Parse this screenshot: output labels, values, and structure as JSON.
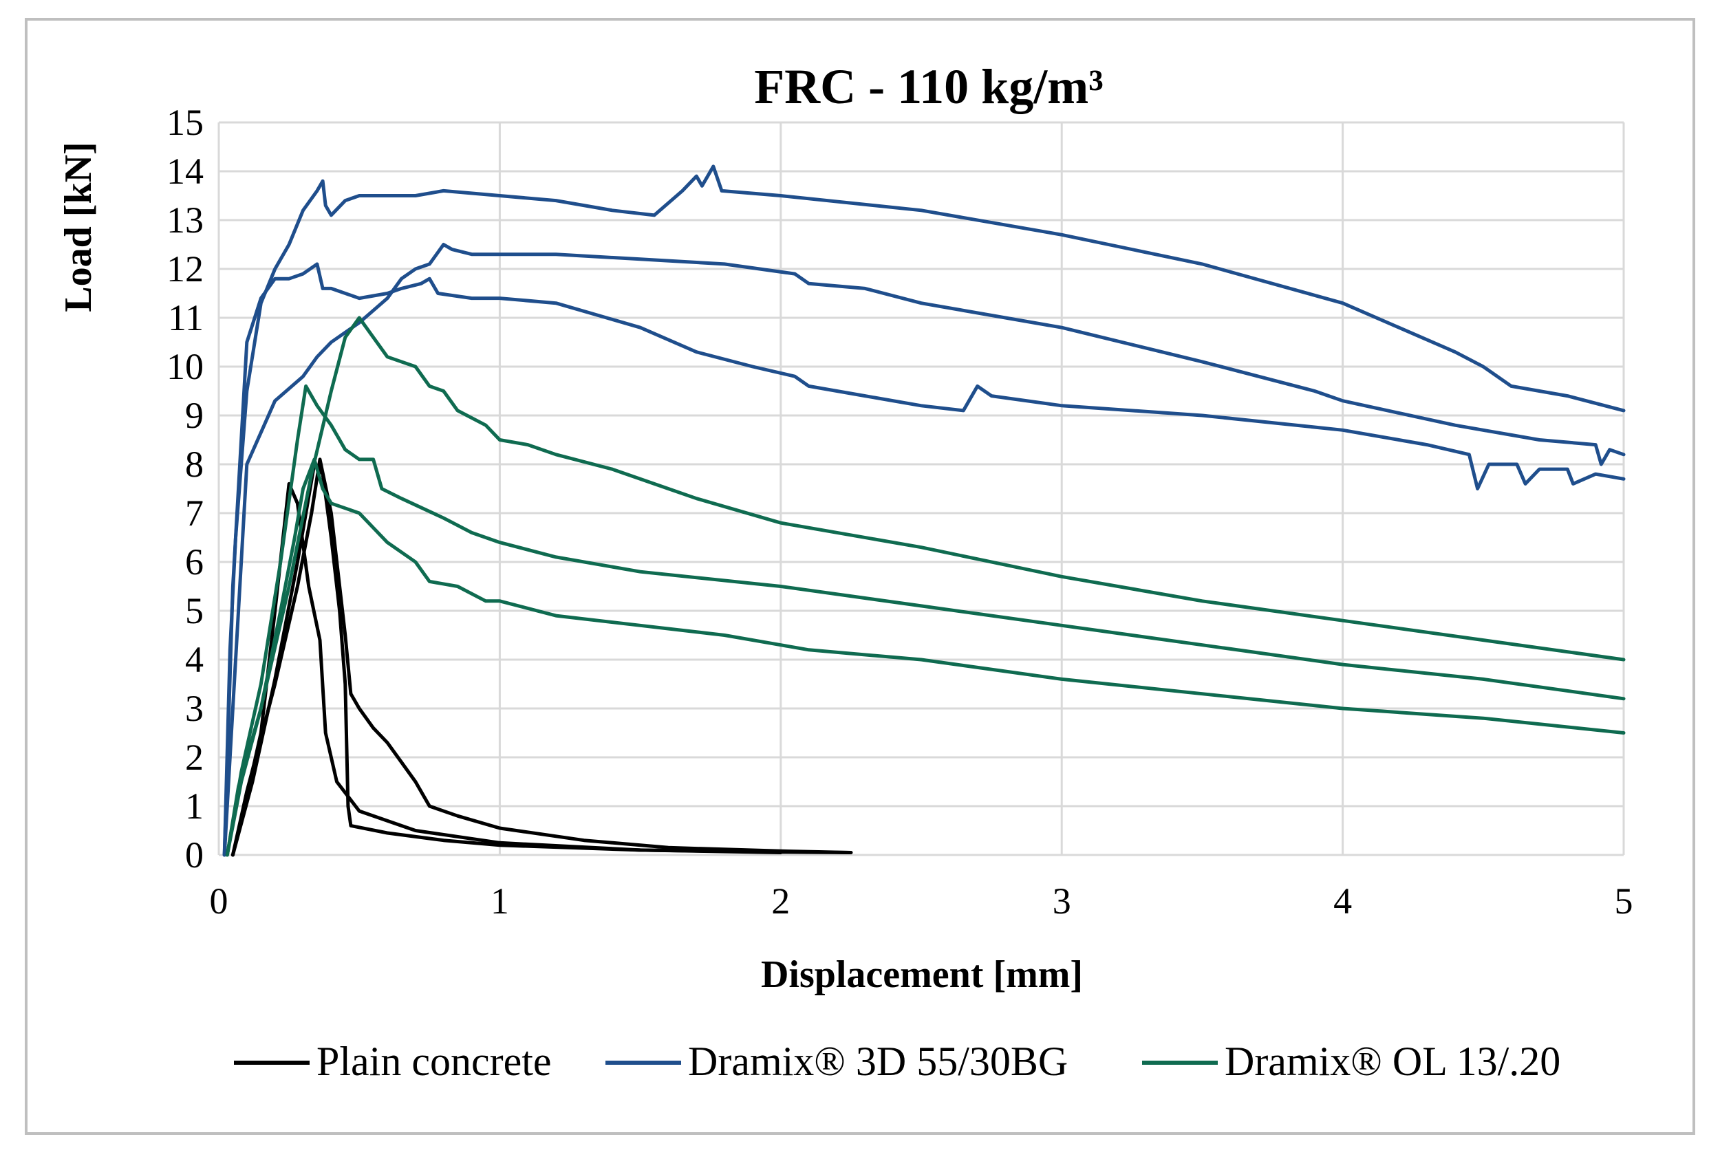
{
  "chart_data": {
    "type": "line",
    "title": "FRC - 110 kg/m³",
    "xlabel": "Displacement [mm]",
    "ylabel": "Load [kN]",
    "xlim": [
      0,
      5
    ],
    "ylim": [
      0,
      15
    ],
    "x_ticks": [
      "0",
      "1",
      "2",
      "3",
      "4",
      "5"
    ],
    "y_ticks": [
      "0",
      "1",
      "2",
      "3",
      "4",
      "5",
      "6",
      "7",
      "8",
      "9",
      "10",
      "11",
      "12",
      "13",
      "14",
      "15"
    ],
    "grid": true,
    "legend_position": "bottom",
    "legend": [
      {
        "label": "Plain concrete",
        "color": "#000000"
      },
      {
        "label": "Dramix® 3D 55/30BG",
        "color": "#1f4e8c"
      },
      {
        "label": "Dramix® OL 13/.20",
        "color": "#0f6b50"
      }
    ],
    "series": [
      {
        "group": "Plain concrete",
        "color": "#000000",
        "points": [
          [
            0.05,
            0
          ],
          [
            0.1,
            1.2
          ],
          [
            0.15,
            2.5
          ],
          [
            0.2,
            5.0
          ],
          [
            0.25,
            7.6
          ],
          [
            0.28,
            7.2
          ],
          [
            0.32,
            5.5
          ],
          [
            0.36,
            4.4
          ],
          [
            0.38,
            2.5
          ],
          [
            0.42,
            1.5
          ],
          [
            0.5,
            0.9
          ],
          [
            0.7,
            0.5
          ],
          [
            1.0,
            0.25
          ],
          [
            1.5,
            0.1
          ],
          [
            2.0,
            0.06
          ],
          [
            2.25,
            0.05
          ]
        ]
      },
      {
        "group": "Plain concrete",
        "color": "#000000",
        "points": [
          [
            0.05,
            0
          ],
          [
            0.1,
            1.3
          ],
          [
            0.2,
            3.5
          ],
          [
            0.28,
            5.5
          ],
          [
            0.33,
            7.0
          ],
          [
            0.36,
            8.1
          ],
          [
            0.4,
            7.0
          ],
          [
            0.45,
            4.5
          ],
          [
            0.47,
            3.3
          ],
          [
            0.5,
            3.0
          ],
          [
            0.55,
            2.6
          ],
          [
            0.6,
            2.3
          ],
          [
            0.65,
            1.9
          ],
          [
            0.7,
            1.5
          ],
          [
            0.75,
            1.0
          ],
          [
            0.85,
            0.8
          ],
          [
            1.0,
            0.55
          ],
          [
            1.3,
            0.3
          ],
          [
            1.6,
            0.15
          ],
          [
            2.0,
            0.08
          ],
          [
            2.25,
            0.05
          ]
        ]
      },
      {
        "group": "Plain concrete",
        "color": "#000000",
        "points": [
          [
            0.05,
            0
          ],
          [
            0.12,
            1.5
          ],
          [
            0.2,
            3.6
          ],
          [
            0.28,
            6.0
          ],
          [
            0.34,
            8.0
          ],
          [
            0.37,
            7.8
          ],
          [
            0.4,
            6.5
          ],
          [
            0.43,
            5.0
          ],
          [
            0.45,
            3.5
          ],
          [
            0.46,
            1.0
          ],
          [
            0.47,
            0.6
          ],
          [
            0.6,
            0.45
          ],
          [
            0.8,
            0.3
          ],
          [
            1.0,
            0.2
          ],
          [
            1.5,
            0.1
          ],
          [
            2.0,
            0.05
          ]
        ]
      },
      {
        "group": "Dramix® 3D 55/30BG",
        "color": "#1f4e8c",
        "points": [
          [
            0.02,
            0
          ],
          [
            0.04,
            4.2
          ],
          [
            0.06,
            6.5
          ],
          [
            0.1,
            9.5
          ],
          [
            0.15,
            11.3
          ],
          [
            0.2,
            12.0
          ],
          [
            0.25,
            12.5
          ],
          [
            0.3,
            13.2
          ],
          [
            0.35,
            13.6
          ],
          [
            0.37,
            13.8
          ],
          [
            0.38,
            13.3
          ],
          [
            0.4,
            13.1
          ],
          [
            0.45,
            13.4
          ],
          [
            0.5,
            13.5
          ],
          [
            0.7,
            13.5
          ],
          [
            0.8,
            13.6
          ],
          [
            1.0,
            13.5
          ],
          [
            1.2,
            13.4
          ],
          [
            1.4,
            13.2
          ],
          [
            1.55,
            13.1
          ],
          [
            1.65,
            13.6
          ],
          [
            1.7,
            13.9
          ],
          [
            1.72,
            13.7
          ],
          [
            1.76,
            14.1
          ],
          [
            1.79,
            13.6
          ],
          [
            2.0,
            13.5
          ],
          [
            2.5,
            13.2
          ],
          [
            3.0,
            12.7
          ],
          [
            3.5,
            12.1
          ],
          [
            4.0,
            11.3
          ],
          [
            4.2,
            10.8
          ],
          [
            4.4,
            10.3
          ],
          [
            4.5,
            10.0
          ],
          [
            4.6,
            9.6
          ],
          [
            4.8,
            9.4
          ],
          [
            5.0,
            9.1
          ]
        ]
      },
      {
        "group": "Dramix® 3D 55/30BG",
        "color": "#1f4e8c",
        "points": [
          [
            0.02,
            0
          ],
          [
            0.05,
            5.5
          ],
          [
            0.1,
            10.5
          ],
          [
            0.15,
            11.4
          ],
          [
            0.2,
            11.8
          ],
          [
            0.25,
            11.8
          ],
          [
            0.3,
            11.9
          ],
          [
            0.35,
            12.1
          ],
          [
            0.37,
            11.6
          ],
          [
            0.4,
            11.6
          ],
          [
            0.5,
            11.4
          ],
          [
            0.6,
            11.5
          ],
          [
            0.65,
            11.6
          ],
          [
            0.72,
            11.7
          ],
          [
            0.75,
            11.8
          ],
          [
            0.78,
            11.5
          ],
          [
            0.9,
            11.4
          ],
          [
            1.0,
            11.4
          ],
          [
            1.2,
            11.3
          ],
          [
            1.5,
            10.8
          ],
          [
            1.7,
            10.3
          ],
          [
            1.9,
            10.0
          ],
          [
            2.05,
            9.8
          ],
          [
            2.1,
            9.6
          ],
          [
            2.3,
            9.4
          ],
          [
            2.5,
            9.2
          ],
          [
            2.65,
            9.1
          ],
          [
            2.7,
            9.6
          ],
          [
            2.75,
            9.4
          ],
          [
            3.0,
            9.2
          ],
          [
            3.5,
            9.0
          ],
          [
            4.0,
            8.7
          ],
          [
            4.3,
            8.4
          ],
          [
            4.45,
            8.2
          ],
          [
            4.48,
            7.5
          ],
          [
            4.52,
            8.0
          ],
          [
            4.62,
            8.0
          ],
          [
            4.65,
            7.6
          ],
          [
            4.7,
            7.9
          ],
          [
            4.8,
            7.9
          ],
          [
            4.82,
            7.6
          ],
          [
            4.9,
            7.8
          ],
          [
            5.0,
            7.7
          ]
        ]
      },
      {
        "group": "Dramix® 3D 55/30BG",
        "color": "#1f4e8c",
        "points": [
          [
            0.02,
            0
          ],
          [
            0.04,
            2.0
          ],
          [
            0.06,
            4.0
          ],
          [
            0.1,
            8.0
          ],
          [
            0.2,
            9.3
          ],
          [
            0.3,
            9.8
          ],
          [
            0.35,
            10.2
          ],
          [
            0.4,
            10.5
          ],
          [
            0.5,
            10.9
          ],
          [
            0.6,
            11.4
          ],
          [
            0.65,
            11.8
          ],
          [
            0.7,
            12.0
          ],
          [
            0.75,
            12.1
          ],
          [
            0.8,
            12.5
          ],
          [
            0.83,
            12.4
          ],
          [
            0.9,
            12.3
          ],
          [
            1.0,
            12.3
          ],
          [
            1.2,
            12.3
          ],
          [
            1.5,
            12.2
          ],
          [
            1.8,
            12.1
          ],
          [
            2.05,
            11.9
          ],
          [
            2.1,
            11.7
          ],
          [
            2.3,
            11.6
          ],
          [
            2.5,
            11.3
          ],
          [
            3.0,
            10.8
          ],
          [
            3.5,
            10.1
          ],
          [
            3.9,
            9.5
          ],
          [
            3.95,
            9.4
          ],
          [
            4.0,
            9.3
          ],
          [
            4.4,
            8.8
          ],
          [
            4.6,
            8.6
          ],
          [
            4.7,
            8.5
          ],
          [
            4.9,
            8.4
          ],
          [
            4.92,
            8.0
          ],
          [
            4.95,
            8.3
          ],
          [
            5.0,
            8.2
          ]
        ]
      },
      {
        "group": "Dramix® OL 13/.20",
        "color": "#0f6b50",
        "points": [
          [
            0.03,
            0
          ],
          [
            0.08,
            1.5
          ],
          [
            0.15,
            3.0
          ],
          [
            0.22,
            5.0
          ],
          [
            0.27,
            6.5
          ],
          [
            0.3,
            7.5
          ],
          [
            0.34,
            8.1
          ],
          [
            0.37,
            7.5
          ],
          [
            0.4,
            7.2
          ],
          [
            0.5,
            7.0
          ],
          [
            0.55,
            6.7
          ],
          [
            0.6,
            6.4
          ],
          [
            0.7,
            6.0
          ],
          [
            0.75,
            5.6
          ],
          [
            0.85,
            5.5
          ],
          [
            0.95,
            5.2
          ],
          [
            1.0,
            5.2
          ],
          [
            1.2,
            4.9
          ],
          [
            1.5,
            4.7
          ],
          [
            1.8,
            4.5
          ],
          [
            2.0,
            4.3
          ],
          [
            2.1,
            4.2
          ],
          [
            2.5,
            4.0
          ],
          [
            3.0,
            3.6
          ],
          [
            3.5,
            3.3
          ],
          [
            4.0,
            3.0
          ],
          [
            4.5,
            2.8
          ],
          [
            5.0,
            2.5
          ]
        ]
      },
      {
        "group": "Dramix® OL 13/.20",
        "color": "#0f6b50",
        "points": [
          [
            0.03,
            0
          ],
          [
            0.08,
            1.7
          ],
          [
            0.15,
            3.5
          ],
          [
            0.22,
            6.0
          ],
          [
            0.28,
            8.5
          ],
          [
            0.31,
            9.6
          ],
          [
            0.35,
            9.2
          ],
          [
            0.4,
            8.8
          ],
          [
            0.45,
            8.3
          ],
          [
            0.5,
            8.1
          ],
          [
            0.55,
            8.1
          ],
          [
            0.58,
            7.5
          ],
          [
            0.65,
            7.3
          ],
          [
            0.8,
            6.9
          ],
          [
            0.9,
            6.6
          ],
          [
            1.0,
            6.4
          ],
          [
            1.2,
            6.1
          ],
          [
            1.5,
            5.8
          ],
          [
            2.0,
            5.5
          ],
          [
            2.5,
            5.1
          ],
          [
            3.0,
            4.7
          ],
          [
            3.5,
            4.3
          ],
          [
            4.0,
            3.9
          ],
          [
            4.5,
            3.6
          ],
          [
            5.0,
            3.2
          ]
        ]
      },
      {
        "group": "Dramix® OL 13/.20",
        "color": "#0f6b50",
        "points": [
          [
            0.03,
            0
          ],
          [
            0.07,
            1.4
          ],
          [
            0.15,
            3.0
          ],
          [
            0.25,
            5.5
          ],
          [
            0.33,
            7.8
          ],
          [
            0.4,
            9.5
          ],
          [
            0.45,
            10.6
          ],
          [
            0.5,
            11.0
          ],
          [
            0.55,
            10.6
          ],
          [
            0.6,
            10.2
          ],
          [
            0.7,
            10.0
          ],
          [
            0.75,
            9.6
          ],
          [
            0.8,
            9.5
          ],
          [
            0.85,
            9.1
          ],
          [
            0.95,
            8.8
          ],
          [
            1.0,
            8.5
          ],
          [
            1.1,
            8.4
          ],
          [
            1.2,
            8.2
          ],
          [
            1.4,
            7.9
          ],
          [
            1.6,
            7.5
          ],
          [
            1.7,
            7.3
          ],
          [
            2.0,
            6.8
          ],
          [
            2.5,
            6.3
          ],
          [
            3.0,
            5.7
          ],
          [
            3.5,
            5.2
          ],
          [
            4.0,
            4.8
          ],
          [
            4.5,
            4.4
          ],
          [
            5.0,
            4.0
          ]
        ]
      }
    ]
  }
}
